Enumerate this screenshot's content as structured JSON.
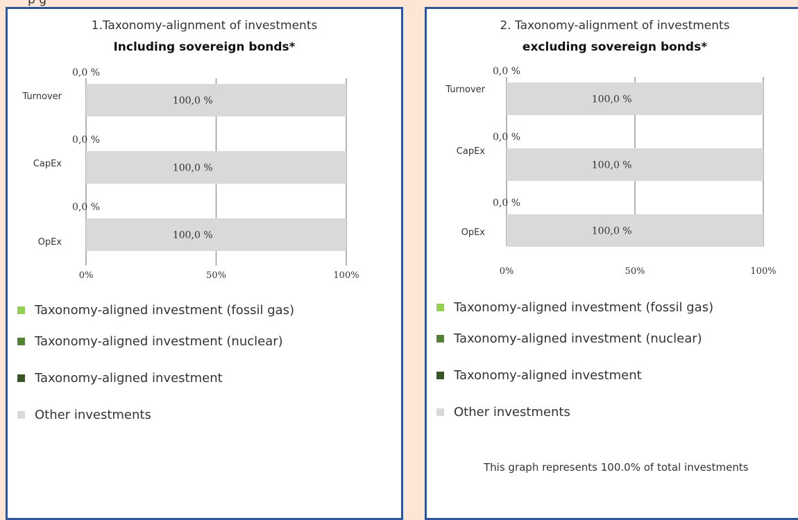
{
  "header_fragment": "p                    g",
  "colors": {
    "border": "#2f5597",
    "fossil_gas": "#92d050",
    "nuclear": "#548235",
    "aligned": "#375623",
    "other": "#d9d9d9"
  },
  "legend": [
    {
      "label": "Taxonomy-aligned investment (fossil gas)",
      "color": "#92d050"
    },
    {
      "label": "Taxonomy-aligned investment (nuclear)",
      "color": "#548235"
    },
    {
      "label": "Taxonomy-aligned investment",
      "color": "#375623"
    },
    {
      "label": "Other investments",
      "color": "#d9d9d9"
    }
  ],
  "chart_data": [
    {
      "type": "bar",
      "orientation": "horizontal",
      "stacked": true,
      "title": "1.Taxonomy-alignment of investments",
      "subtitle": "Including sovereign bonds*",
      "categories": [
        "Turnover",
        "CapEx",
        "OpEx"
      ],
      "series": [
        {
          "name": "Taxonomy-aligned investment",
          "values": [
            0.0,
            0.0,
            0.0
          ],
          "labels": [
            "0,0 %",
            "0,0 %",
            "0,0 %"
          ]
        },
        {
          "name": "Other investments",
          "values": [
            100.0,
            100.0,
            100.0
          ],
          "labels": [
            "100,0 %",
            "100,0 %",
            "100,0 %"
          ]
        }
      ],
      "xlim": [
        0,
        100
      ],
      "xticks": [
        "0%",
        "50%",
        "100%"
      ],
      "grid": true
    },
    {
      "type": "bar",
      "orientation": "horizontal",
      "stacked": true,
      "title": "2. Taxonomy-alignment of investments",
      "subtitle": "excluding sovereign bonds*",
      "categories": [
        "Turnover",
        "CapEx",
        "OpEx"
      ],
      "series": [
        {
          "name": "Taxonomy-aligned investment",
          "values": [
            0.0,
            0.0,
            0.0
          ],
          "labels": [
            "0,0 %",
            "0,0 %",
            "0,0 %"
          ]
        },
        {
          "name": "Other investments",
          "values": [
            100.0,
            100.0,
            100.0
          ],
          "labels": [
            "100,0 %",
            "100,0 %",
            "100,0 %"
          ]
        }
      ],
      "xlim": [
        0,
        100
      ],
      "xticks": [
        "0%",
        "50%",
        "100%"
      ],
      "grid": true,
      "note": "This graph represents 100.0% of total investments"
    }
  ]
}
